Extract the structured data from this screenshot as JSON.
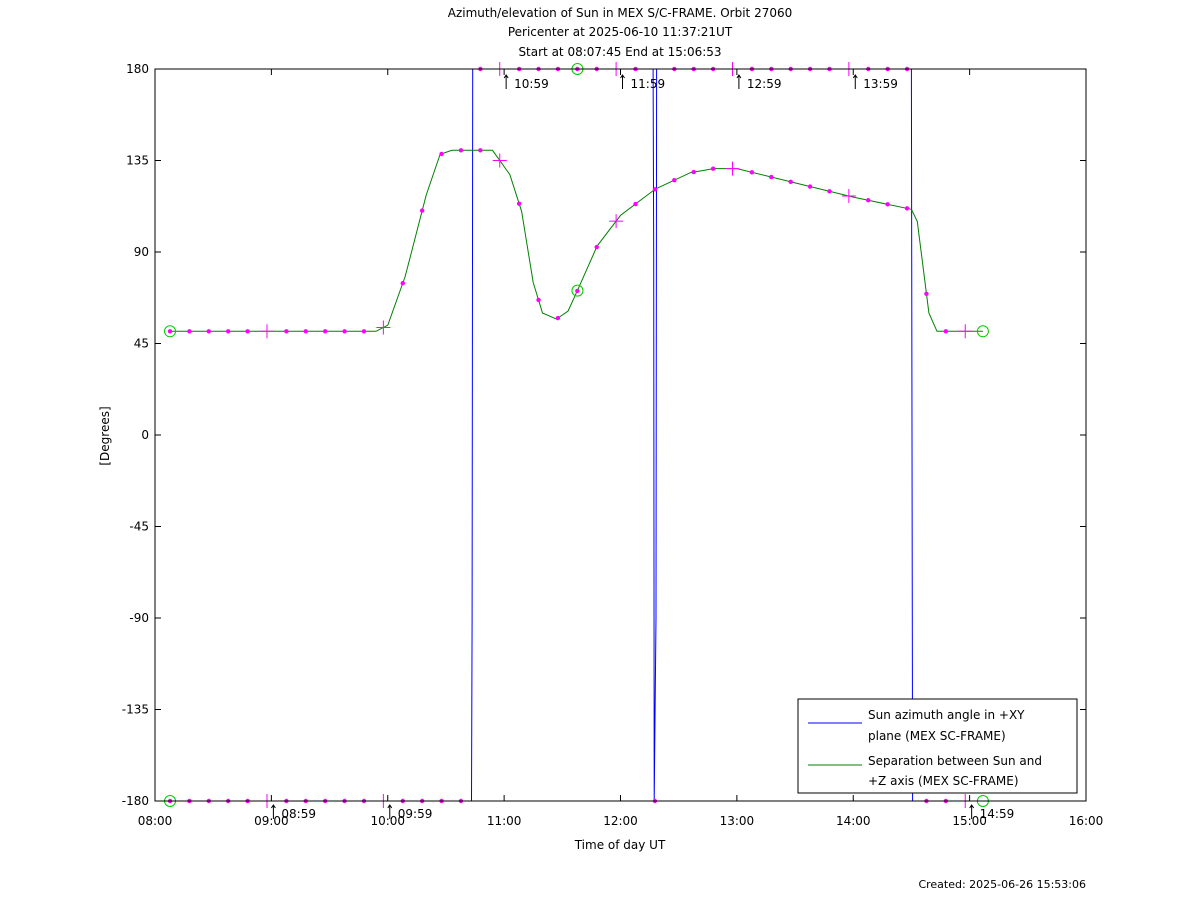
{
  "chart_data": {
    "type": "line",
    "title_lines": [
      "Azimuth/elevation of Sun in MEX S/C-FRAME.  Orbit 27060",
      "Pericenter at 2025-06-10 11:37:21UT",
      "Start at 08:07:45 End at 15:06:53"
    ],
    "xlabel": "Time of day UT",
    "ylabel": "[Degrees]",
    "xlim": [
      8,
      16
    ],
    "ylim": [
      -180,
      180
    ],
    "x_ticks": [
      {
        "value": 8,
        "label": "08:00"
      },
      {
        "value": 9,
        "label": "09:00"
      },
      {
        "value": 10,
        "label": "10:00"
      },
      {
        "value": 11,
        "label": "11:00"
      },
      {
        "value": 12,
        "label": "12:00"
      },
      {
        "value": 13,
        "label": "13:00"
      },
      {
        "value": 14,
        "label": "14:00"
      },
      {
        "value": 15,
        "label": "15:00"
      },
      {
        "value": 16,
        "label": "16:00"
      }
    ],
    "y_ticks": [
      {
        "value": 180,
        "label": "180"
      },
      {
        "value": 135,
        "label": "135"
      },
      {
        "value": 90,
        "label": "90"
      },
      {
        "value": 45,
        "label": "45"
      },
      {
        "value": 0,
        "label": "0"
      },
      {
        "value": -45,
        "label": "-45"
      },
      {
        "value": -90,
        "label": "-90"
      },
      {
        "value": -135,
        "label": "-135"
      },
      {
        "value": -180,
        "label": "-180"
      }
    ],
    "time_annotations": [
      {
        "x": 8.983,
        "y": -180,
        "label": "08:59"
      },
      {
        "x": 9.983,
        "y": -180,
        "label": "09:59"
      },
      {
        "x": 10.983,
        "y": 180,
        "label": "10:59"
      },
      {
        "x": 11.983,
        "y": 180,
        "label": "11:59"
      },
      {
        "x": 12.983,
        "y": 180,
        "label": "12:59"
      },
      {
        "x": 13.983,
        "y": 180,
        "label": "13:59"
      },
      {
        "x": 14.983,
        "y": -180,
        "label": "14:59"
      }
    ],
    "series": [
      {
        "name": "Sun azimuth angle in +XY plane (MEX SC-FRAME)",
        "name_lines": [
          "Sun azimuth angle in +XY",
          "plane (MEX SC-FRAME)"
        ],
        "color": "#0000ff",
        "points": [
          [
            8.129,
            -180
          ],
          [
            10.72,
            -180
          ],
          [
            10.725,
            -90
          ],
          [
            10.73,
            180
          ],
          [
            12.28,
            180
          ],
          [
            12.285,
            90
          ],
          [
            12.29,
            -180
          ],
          [
            12.305,
            -90
          ],
          [
            12.31,
            180
          ],
          [
            14.5,
            180
          ],
          [
            14.505,
            0
          ],
          [
            14.51,
            -180
          ],
          [
            15.114,
            -180
          ]
        ]
      },
      {
        "name": "Separation between Sun and +Z axis (MEX SC-FRAME)",
        "name_lines": [
          "Separation between Sun and",
          "+Z axis (MEX SC-FRAME)"
        ],
        "color": "#008000",
        "points": [
          [
            8.129,
            51
          ],
          [
            9.9,
            51
          ],
          [
            10.0,
            54
          ],
          [
            10.15,
            78
          ],
          [
            10.33,
            118
          ],
          [
            10.45,
            138
          ],
          [
            10.55,
            140
          ],
          [
            10.9,
            140
          ],
          [
            11.05,
            128
          ],
          [
            11.15,
            110
          ],
          [
            11.25,
            75
          ],
          [
            11.33,
            60
          ],
          [
            11.45,
            57
          ],
          [
            11.55,
            61
          ],
          [
            11.63,
            71
          ],
          [
            11.8,
            93
          ],
          [
            12.0,
            108
          ],
          [
            12.3,
            121
          ],
          [
            12.6,
            129
          ],
          [
            12.8,
            131
          ],
          [
            13.0,
            131
          ],
          [
            13.5,
            124
          ],
          [
            14.0,
            117
          ],
          [
            14.5,
            111
          ],
          [
            14.55,
            105
          ],
          [
            14.65,
            60
          ],
          [
            14.72,
            51
          ],
          [
            15.114,
            51
          ]
        ]
      }
    ],
    "marker_color": "#ff00ff",
    "start_end_marker_color": "#00cc00",
    "legend_position": "bottom-right",
    "grid": false,
    "footer": "Created: 2025-06-26 15:53:06"
  }
}
